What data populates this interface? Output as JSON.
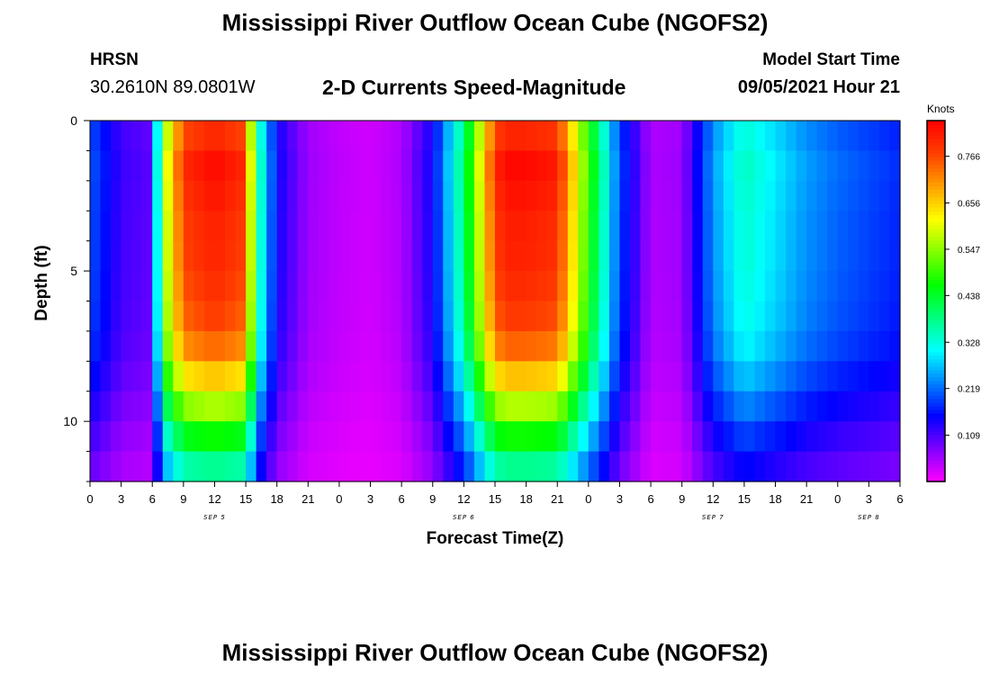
{
  "header": {
    "title": "Mississippi River Outflow Ocean Cube (NGOFS2)",
    "station": "HRSN",
    "coordinates": "30.2610N  89.0801W",
    "plot_title": "2-D Currents Speed-Magnitude",
    "model_start_label": "Model Start Time",
    "model_start_value": "09/05/2021 Hour 21"
  },
  "footer": {
    "title": "Mississippi River Outflow Ocean Cube (NGOFS2)"
  },
  "chart_data": {
    "type": "heatmap",
    "xlabel": "Forecast Time(Z)",
    "ylabel": "Depth (ft)",
    "units": "Knots",
    "x_hour_range": [
      0,
      78
    ],
    "x_ticks": [
      "0",
      "3",
      "6",
      "9",
      "12",
      "15",
      "18",
      "21",
      "0",
      "3",
      "6",
      "9",
      "12",
      "15",
      "18",
      "21",
      "0",
      "3",
      "6",
      "9",
      "12",
      "15",
      "18",
      "21",
      "0",
      "3",
      "6"
    ],
    "date_labels": [
      {
        "label": "SEP 5",
        "hour": 12
      },
      {
        "label": "SEP 6",
        "hour": 36
      },
      {
        "label": "SEP 7",
        "hour": 60
      },
      {
        "label": "SEP 8",
        "hour": 75
      }
    ],
    "y_ticks": [
      "0",
      "5",
      "10"
    ],
    "ylim": [
      0,
      12
    ],
    "y_inverted": true,
    "colorbar": {
      "min": 0.0,
      "max": 0.85,
      "ticks": [
        "0.109",
        "0.219",
        "0.328",
        "0.438",
        "0.547",
        "0.656",
        "0.766"
      ],
      "tick_values": [
        0.109,
        0.219,
        0.328,
        0.438,
        0.547,
        0.656,
        0.766
      ],
      "colormap": [
        "#ff00ff",
        "#8000ff",
        "#0000ff",
        "#0080ff",
        "#00ffff",
        "#00ff80",
        "#00ff00",
        "#80ff00",
        "#ffff00",
        "#ffa000",
        "#ff4000",
        "#ff0000"
      ]
    },
    "depth_profile": {
      "depths": [
        0,
        1,
        2,
        3,
        4,
        5,
        6,
        7,
        8,
        9,
        10,
        11,
        12
      ],
      "rel": [
        0.92,
        1.0,
        1.0,
        0.97,
        0.97,
        0.96,
        0.94,
        0.92,
        0.85,
        0.74,
        0.62,
        0.5,
        0.4
      ]
    },
    "surface_speed_series": {
      "hours": [
        0,
        3,
        6,
        7,
        9,
        12,
        15,
        16,
        18,
        21,
        24,
        27,
        30,
        33,
        36,
        39,
        40,
        42,
        45,
        48,
        51,
        54,
        57,
        60,
        63,
        66,
        69,
        72,
        75,
        78
      ],
      "values": [
        0.21,
        0.12,
        0.1,
        0.55,
        0.8,
        0.84,
        0.8,
        0.4,
        0.15,
        0.06,
        0.04,
        0.03,
        0.05,
        0.15,
        0.4,
        0.8,
        0.84,
        0.84,
        0.82,
        0.5,
        0.2,
        0.05,
        0.06,
        0.25,
        0.35,
        0.3,
        0.25,
        0.22,
        0.2,
        0.18
      ]
    }
  }
}
